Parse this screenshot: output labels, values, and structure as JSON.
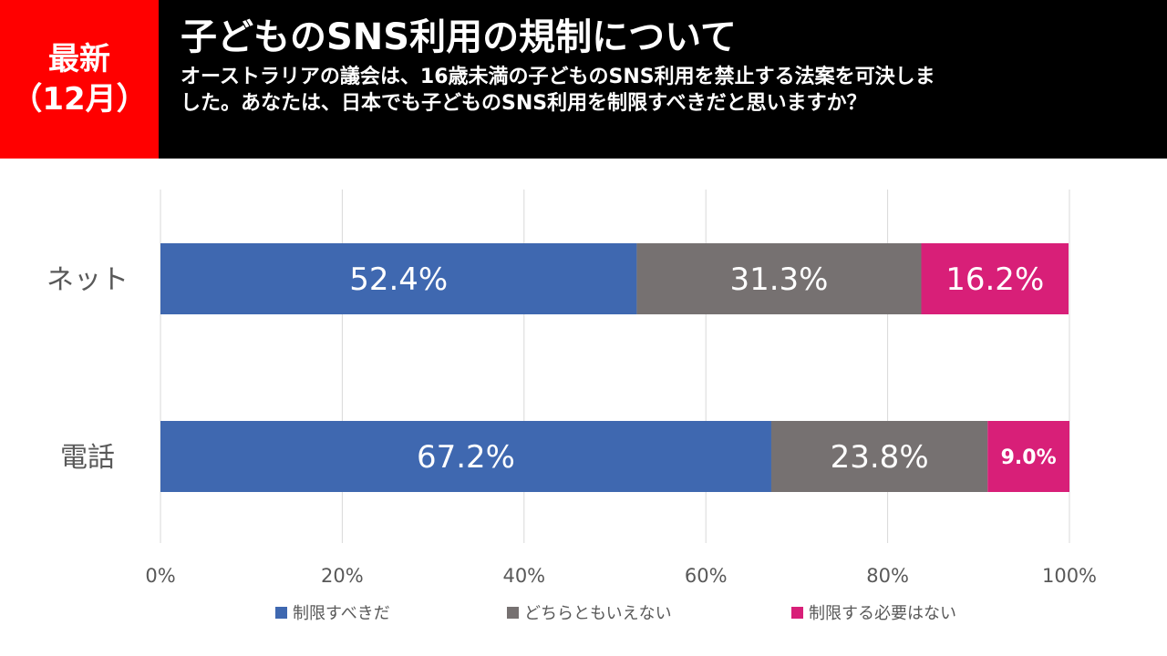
{
  "header": {
    "badge_line1": "最新",
    "badge_line2": "（12月）",
    "title": "子どものSNS利用の規制について",
    "question": "オーストラリアの議会は、16歳未満の子どものSNS利用を禁止する法案を可決しました。あなたは、日本でも子どものSNS利用を制限すべきだと思いますか？"
  },
  "colors": {
    "header_bg": "#000000",
    "badge_bg": "#ff0000",
    "series": [
      "#3f68b0",
      "#767171",
      "#d81f78"
    ]
  },
  "chart_data": {
    "type": "bar",
    "orientation": "horizontal",
    "stacked": true,
    "categories": [
      "ネット",
      "電話"
    ],
    "series": [
      {
        "name": "制限すべきだ",
        "values": [
          52.4,
          67.2
        ],
        "labels": [
          "52.4%",
          "67.2%"
        ]
      },
      {
        "name": "どちらともいえない",
        "values": [
          31.3,
          23.8
        ],
        "labels": [
          "31.3%",
          "23.8%"
        ]
      },
      {
        "name": "制限する必要はない",
        "values": [
          16.2,
          9.0
        ],
        "labels": [
          "16.2%",
          "9.0%"
        ]
      }
    ],
    "xlim": [
      0,
      100
    ],
    "xticks": [
      "0%",
      "20%",
      "40%",
      "60%",
      "80%",
      "100%"
    ],
    "grid": true,
    "legend": "bottom"
  }
}
